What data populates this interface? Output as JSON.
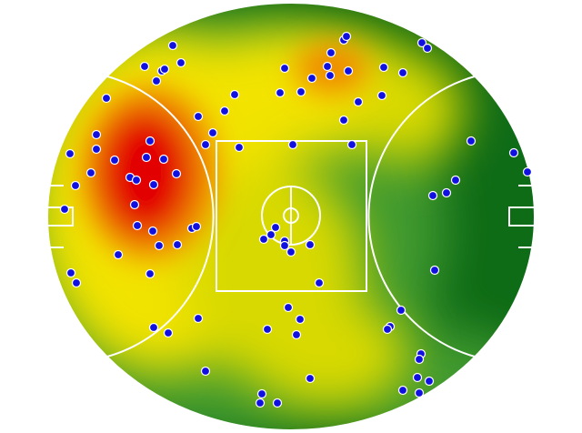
{
  "colors": {
    "low": "#0e6b16",
    "mid_low": "#3f9a2e",
    "mid": "#d8d900",
    "mid_high": "#f2e300",
    "high": "#f08a00",
    "peak": "#e30000",
    "line": "#ffffff",
    "marker_fill": "#1010e0",
    "marker_stroke": "#ffffff"
  },
  "heat_levels": [
    {
      "name": "peak",
      "value": 1.0
    },
    {
      "name": "high",
      "value": 0.75
    },
    {
      "name": "mid_high",
      "value": 0.5
    },
    {
      "name": "mid_low",
      "value": 0.25
    },
    {
      "name": "low",
      "value": 0.0
    }
  ],
  "marker_count": 104
}
